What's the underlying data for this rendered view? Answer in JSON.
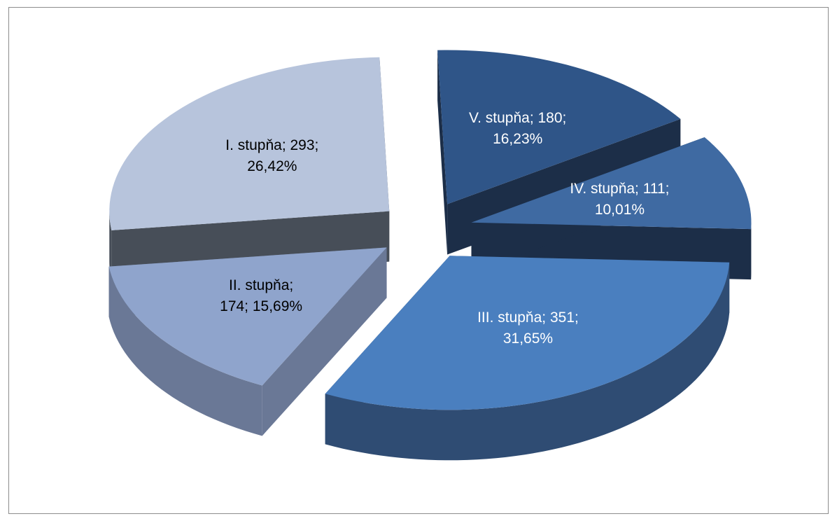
{
  "chart_data": {
    "type": "pie",
    "three_d": true,
    "exploded": true,
    "legend": "none",
    "slices": [
      {
        "category": "I. stupňa",
        "value": 293,
        "percent": "26,42%",
        "label_lines": [
          "I. stupňa; 293;",
          "26,42%"
        ],
        "color": "#b7c4dc",
        "side_color": "#474e58",
        "label_color": "#000000"
      },
      {
        "category": "II. stupňa",
        "value": 174,
        "percent": "15,69%",
        "label_lines": [
          "II. stupňa;",
          "174; 15,69%"
        ],
        "color": "#8fa4cc",
        "side_color": "#6a7896",
        "label_color": "#000000"
      },
      {
        "category": "III. stupňa",
        "value": 351,
        "percent": "31,65%",
        "label_lines": [
          "III. stupňa; 351;",
          "31,65%"
        ],
        "color": "#4a7fbf",
        "side_color": "#2f4c73",
        "label_color": "#ffffff"
      },
      {
        "category": "IV. stupňa",
        "value": 111,
        "percent": "10,01%",
        "label_lines": [
          "IV. stupňa; 111;",
          "10,01%"
        ],
        "color": "#3f6aa2",
        "side_color": "#1c2e48",
        "label_color": "#ffffff"
      },
      {
        "category": "V. stupňa",
        "value": 180,
        "percent": "16,23%",
        "label_lines": [
          "V. stupňa; 180;",
          "16,23%"
        ],
        "color": "#2f5588",
        "side_color": "#1c2e48",
        "label_color": "#ffffff"
      }
    ]
  }
}
